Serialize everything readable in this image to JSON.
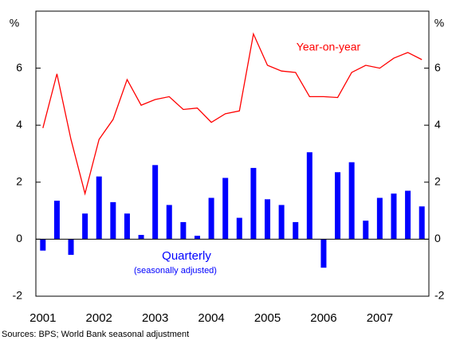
{
  "chart_data": {
    "type": "bar_line",
    "y_unit_label": "%",
    "categories": [
      "2001",
      null,
      null,
      null,
      "2002",
      null,
      null,
      null,
      "2003",
      null,
      null,
      null,
      "2004",
      null,
      null,
      null,
      "2005",
      null,
      null,
      null,
      "2006",
      null,
      null,
      null,
      "2007",
      null,
      null,
      null
    ],
    "series": [
      {
        "name": "Quarterly",
        "subtitle": "(seasonally adjusted)",
        "kind": "bar",
        "color": "#0000ff",
        "values": [
          -0.4,
          1.35,
          -0.55,
          0.9,
          2.2,
          1.3,
          0.9,
          0.15,
          2.6,
          1.2,
          0.6,
          0.12,
          1.45,
          2.15,
          0.75,
          2.5,
          1.4,
          1.2,
          0.6,
          3.05,
          -1.0,
          2.35,
          2.7,
          0.65,
          1.45,
          1.6,
          1.7,
          1.15
        ]
      },
      {
        "name": "Year-on-year",
        "kind": "line",
        "color": "#ff0000",
        "values": [
          3.9,
          5.8,
          3.5,
          1.6,
          3.5,
          4.2,
          5.6,
          4.7,
          4.9,
          5.0,
          4.55,
          4.6,
          4.1,
          4.4,
          4.5,
          7.2,
          6.1,
          5.9,
          5.85,
          5.0,
          5.0,
          4.97,
          5.85,
          6.1,
          6.0,
          6.35,
          6.55,
          6.3
        ]
      }
    ],
    "ylim": [
      -2,
      8
    ],
    "yticks": [
      -2,
      0,
      2,
      4,
      6
    ],
    "source": "Sources: BPS; World Bank seasonal adjustment"
  }
}
